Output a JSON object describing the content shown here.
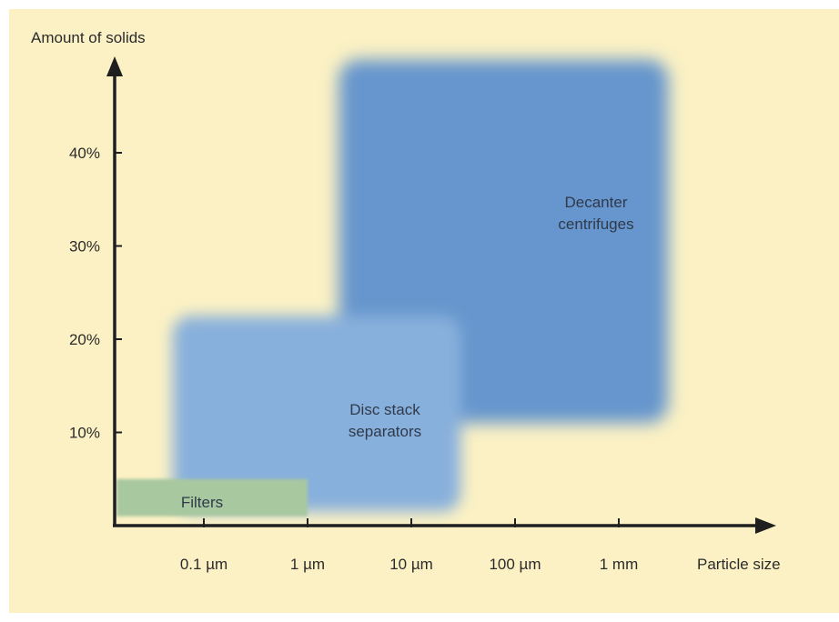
{
  "colors": {
    "background": "#fbf1c4",
    "axis": "#1f1f1f",
    "decanter": "#6696cd",
    "disc_stack": "#88b0dc",
    "filters": "#a8c8a0"
  },
  "chart_data": {
    "type": "area",
    "title": "",
    "xlabel": "Particle size",
    "ylabel": "Amount of solids",
    "x_scale": "log",
    "x_categories": [
      "0.1 µm",
      "1 µm",
      "10 µm",
      "100 µm",
      "1 mm"
    ],
    "y_ticks": [
      "10%",
      "20%",
      "30%",
      "40%"
    ],
    "y_tick_values": [
      10,
      20,
      30,
      40
    ],
    "ylim": [
      0,
      50
    ],
    "grid": false,
    "regions": [
      {
        "key": "decanter",
        "label_lines": [
          "Decanter",
          "centrifuges"
        ],
        "x_range_um": [
          2,
          3000
        ],
        "y_range_pct": [
          11,
          50
        ]
      },
      {
        "key": "disc_stack",
        "label_lines": [
          "Disc stack",
          "separators"
        ],
        "x_range_um": [
          0.05,
          30
        ],
        "y_range_pct": [
          1.5,
          22.5
        ]
      },
      {
        "key": "filters",
        "label_lines": [
          "Filters"
        ],
        "x_range_um": [
          0.01,
          1
        ],
        "y_range_pct": [
          1,
          5
        ]
      }
    ]
  }
}
